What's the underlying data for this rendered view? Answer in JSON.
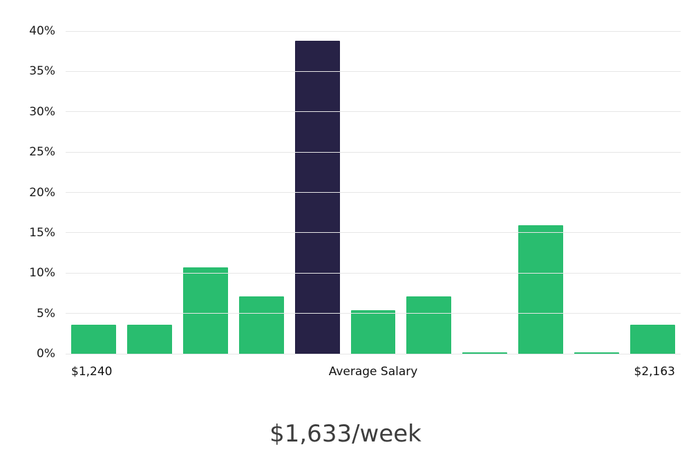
{
  "chart_data": {
    "type": "bar",
    "title": "$1,633/week",
    "categories": [
      "",
      "",
      "",
      "",
      "",
      "",
      "",
      "",
      "",
      "",
      ""
    ],
    "values": [
      3.6,
      3.6,
      10.7,
      7.1,
      38.8,
      5.4,
      7.1,
      0.2,
      15.9,
      0.2,
      3.6
    ],
    "highlight_index": 4,
    "bar_color": "#29bd6f",
    "highlight_color": "#272246",
    "ylim": [
      0,
      40
    ],
    "ytick_step": 5,
    "yticks": [
      "0%",
      "5%",
      "10%",
      "15%",
      "20%",
      "25%",
      "30%",
      "35%",
      "40%"
    ],
    "x_axis_labels": {
      "left": "$1,240",
      "center": "Average Salary",
      "right": "$2,163"
    },
    "grid": true,
    "legend": false
  }
}
